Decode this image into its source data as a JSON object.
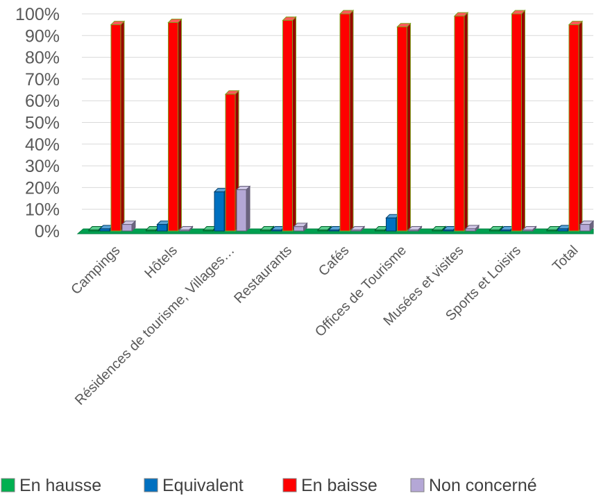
{
  "chart_data": {
    "type": "bar",
    "title": "",
    "xlabel": "",
    "ylabel": "",
    "ylim": [
      0,
      100
    ],
    "y_ticks": [
      "0%",
      "10%",
      "20%",
      "30%",
      "40%",
      "50%",
      "60%",
      "70%",
      "80%",
      "90%",
      "100%"
    ],
    "grid": true,
    "legend_position": "bottom",
    "categories": [
      "Campings",
      "Hôtels",
      "Résidences de tourisme, Villages…",
      "Restaurants",
      "Cafés",
      "Offices de Tourisme",
      "Musées et visites",
      "Sports et Loisirs",
      "Total"
    ],
    "series": [
      {
        "name": "En hausse",
        "color": "#00B050",
        "values": [
          0,
          0,
          0,
          0,
          0,
          0,
          0,
          0,
          0
        ]
      },
      {
        "name": "Equivalent",
        "color": "#0070C0",
        "values": [
          1,
          3,
          18,
          0,
          0,
          6,
          0,
          0,
          1
        ]
      },
      {
        "name": "En baisse",
        "color": "#FF0000",
        "values": [
          95,
          96,
          63,
          97,
          100,
          94,
          99,
          100,
          95
        ]
      },
      {
        "name": "Non concerné",
        "color": "#B4A7D6",
        "values": [
          3,
          0,
          19,
          2,
          0,
          0,
          1,
          0,
          3
        ]
      }
    ]
  }
}
